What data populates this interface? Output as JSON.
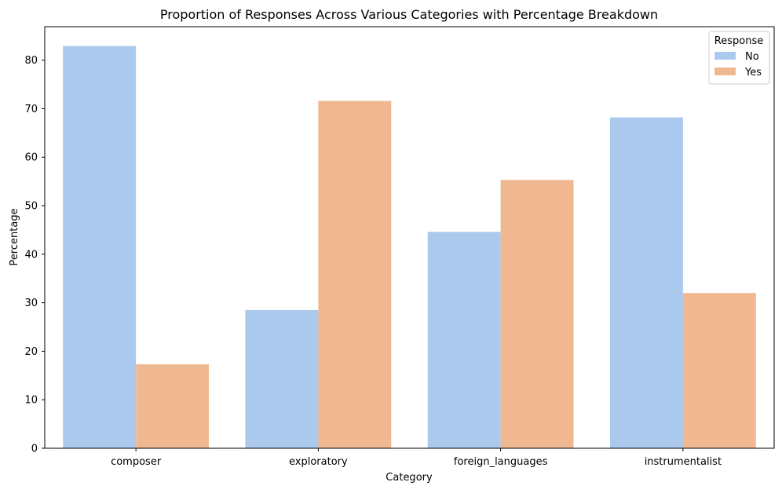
{
  "chart_data": {
    "type": "bar",
    "title": "Proportion of Responses Across Various Categories with Percentage Breakdown",
    "xlabel": "Category",
    "ylabel": "Percentage",
    "categories": [
      "composer",
      "exploratory",
      "foreign_languages",
      "instrumentalist"
    ],
    "series": [
      {
        "name": "No",
        "color": "#abc9ed",
        "values": [
          82.9,
          28.5,
          44.6,
          68.2
        ]
      },
      {
        "name": "Yes",
        "color": "#f0b891",
        "values": [
          17.3,
          71.6,
          55.3,
          32.0
        ]
      }
    ],
    "ylim": [
      0,
      86.9
    ],
    "yticks": [
      0,
      10,
      20,
      30,
      40,
      50,
      60,
      70,
      80
    ],
    "grid": false,
    "legend": {
      "title": "Response",
      "placement": "top-right"
    }
  }
}
